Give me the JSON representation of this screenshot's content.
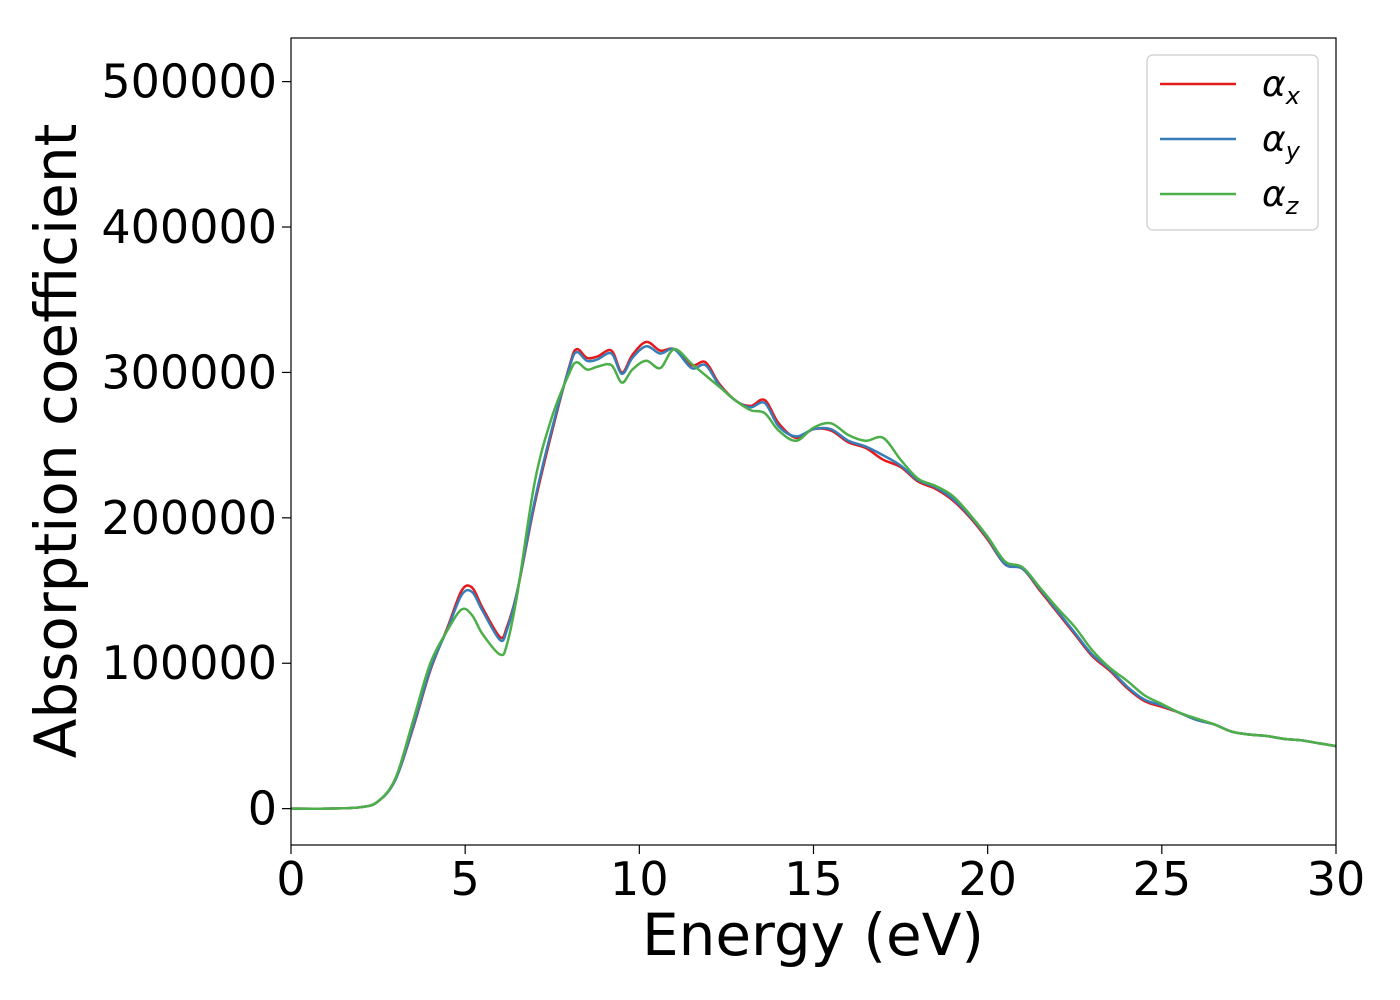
{
  "chart_data": {
    "type": "line",
    "xlabel": "Energy (eV)",
    "ylabel": "Absorption coefficient",
    "xlim": [
      0,
      30
    ],
    "ylim": [
      -25000,
      530000
    ],
    "xticks": [
      0,
      5,
      10,
      15,
      20,
      25,
      30
    ],
    "xtick_labels": [
      "0",
      "5",
      "10",
      "15",
      "20",
      "25",
      "30"
    ],
    "yticks": [
      0,
      100000,
      200000,
      300000,
      400000,
      500000
    ],
    "ytick_labels": [
      "0",
      "100000",
      "200000",
      "300000",
      "400000",
      "500000"
    ],
    "grid": false,
    "legend_position": "top-right",
    "series": [
      {
        "name": "α",
        "subscript": "x",
        "color": "#e41a1c",
        "x": [
          0,
          1,
          2,
          2.5,
          3,
          3.5,
          4,
          4.5,
          4.9,
          5.2,
          5.5,
          6.0,
          6.2,
          6.5,
          7.0,
          7.5,
          8.0,
          8.2,
          8.5,
          8.8,
          9.2,
          9.5,
          9.8,
          10.2,
          10.6,
          11.0,
          11.5,
          11.9,
          12.3,
          12.8,
          13.2,
          13.6,
          14.0,
          14.5,
          15.0,
          15.5,
          16.0,
          16.5,
          17.0,
          17.5,
          18.0,
          18.5,
          19.0,
          19.5,
          20.0,
          20.5,
          21.0,
          21.5,
          22.0,
          22.5,
          23.0,
          23.5,
          24.0,
          24.5,
          25.0,
          25.5,
          26.0,
          26.5,
          27.0,
          27.5,
          28.0,
          28.5,
          29.0,
          29.5,
          30.0
        ],
        "y": [
          0,
          0,
          1000,
          5000,
          20000,
          55000,
          95000,
          125000,
          150000,
          152000,
          138000,
          118000,
          125000,
          150000,
          210000,
          260000,
          305000,
          316000,
          310000,
          311000,
          315000,
          300000,
          312000,
          321000,
          315000,
          316000,
          305000,
          307000,
          292000,
          280000,
          277000,
          281000,
          265000,
          255000,
          261000,
          260000,
          252000,
          248000,
          240000,
          235000,
          225000,
          220000,
          212000,
          200000,
          185000,
          168000,
          165000,
          150000,
          135000,
          120000,
          105000,
          95000,
          83000,
          74000,
          70000,
          66000,
          61000,
          58000,
          53000,
          51000,
          50000,
          48000,
          47000,
          45000,
          43000
        ]
      },
      {
        "name": "α",
        "subscript": "y",
        "color": "#377eb8",
        "x": [
          0,
          1,
          2,
          2.5,
          3,
          3.5,
          4,
          4.5,
          4.9,
          5.2,
          5.5,
          6.0,
          6.2,
          6.5,
          7.0,
          7.5,
          8.0,
          8.2,
          8.5,
          8.8,
          9.2,
          9.5,
          9.8,
          10.2,
          10.6,
          11.0,
          11.5,
          11.9,
          12.3,
          12.8,
          13.2,
          13.6,
          14.0,
          14.5,
          15.0,
          15.5,
          16.0,
          16.5,
          17.0,
          17.5,
          18.0,
          18.5,
          19.0,
          19.5,
          20.0,
          20.5,
          21.0,
          21.5,
          22.0,
          22.5,
          23.0,
          23.5,
          24.0,
          24.5,
          25.0,
          25.5,
          26.0,
          26.5,
          27.0,
          27.5,
          28.0,
          28.5,
          29.0,
          29.5,
          30.0
        ],
        "y": [
          0,
          0,
          1000,
          5000,
          20000,
          56000,
          96000,
          124000,
          147000,
          149000,
          136000,
          116000,
          123000,
          150000,
          212000,
          262000,
          304000,
          314000,
          308000,
          309000,
          313000,
          299000,
          310000,
          318000,
          313000,
          316000,
          303000,
          305000,
          291000,
          280000,
          276000,
          279000,
          263000,
          256000,
          261000,
          261000,
          253000,
          249000,
          243000,
          236000,
          226000,
          221000,
          213000,
          201000,
          186000,
          168000,
          165000,
          151000,
          136000,
          121000,
          106000,
          96000,
          84000,
          75000,
          71000,
          66000,
          61000,
          58000,
          53000,
          51000,
          50000,
          48000,
          47000,
          45000,
          43000
        ]
      },
      {
        "name": "α",
        "subscript": "z",
        "color": "#4daf4a",
        "x": [
          0,
          1,
          2,
          2.5,
          3,
          3.5,
          4,
          4.5,
          4.9,
          5.2,
          5.5,
          6.0,
          6.2,
          6.5,
          7.0,
          7.5,
          8.0,
          8.2,
          8.5,
          8.8,
          9.2,
          9.5,
          9.8,
          10.2,
          10.6,
          11.0,
          11.5,
          11.9,
          12.3,
          12.8,
          13.2,
          13.6,
          14.0,
          14.5,
          15.0,
          15.5,
          16.0,
          16.5,
          17.0,
          17.5,
          18.0,
          18.5,
          19.0,
          19.5,
          20.0,
          20.5,
          21.0,
          21.5,
          22.0,
          22.5,
          23.0,
          23.5,
          24.0,
          24.5,
          25.0,
          25.5,
          26.0,
          26.5,
          27.0,
          27.5,
          28.0,
          28.5,
          29.0,
          29.5,
          30.0
        ],
        "y": [
          0,
          0,
          1000,
          5000,
          21000,
          60000,
          100000,
          123000,
          137000,
          133000,
          120000,
          106000,
          113000,
          148000,
          225000,
          270000,
          300000,
          307000,
          302000,
          304000,
          305000,
          293000,
          302000,
          308000,
          303000,
          316000,
          306000,
          298000,
          290000,
          280000,
          274000,
          272000,
          260000,
          253000,
          262000,
          265000,
          257000,
          253000,
          255000,
          240000,
          227000,
          222000,
          215000,
          202000,
          187000,
          170000,
          166000,
          152000,
          138000,
          125000,
          109000,
          97000,
          88000,
          78000,
          72000,
          66000,
          62000,
          58000,
          53000,
          51000,
          50000,
          48000,
          47000,
          45000,
          43000
        ]
      }
    ]
  }
}
